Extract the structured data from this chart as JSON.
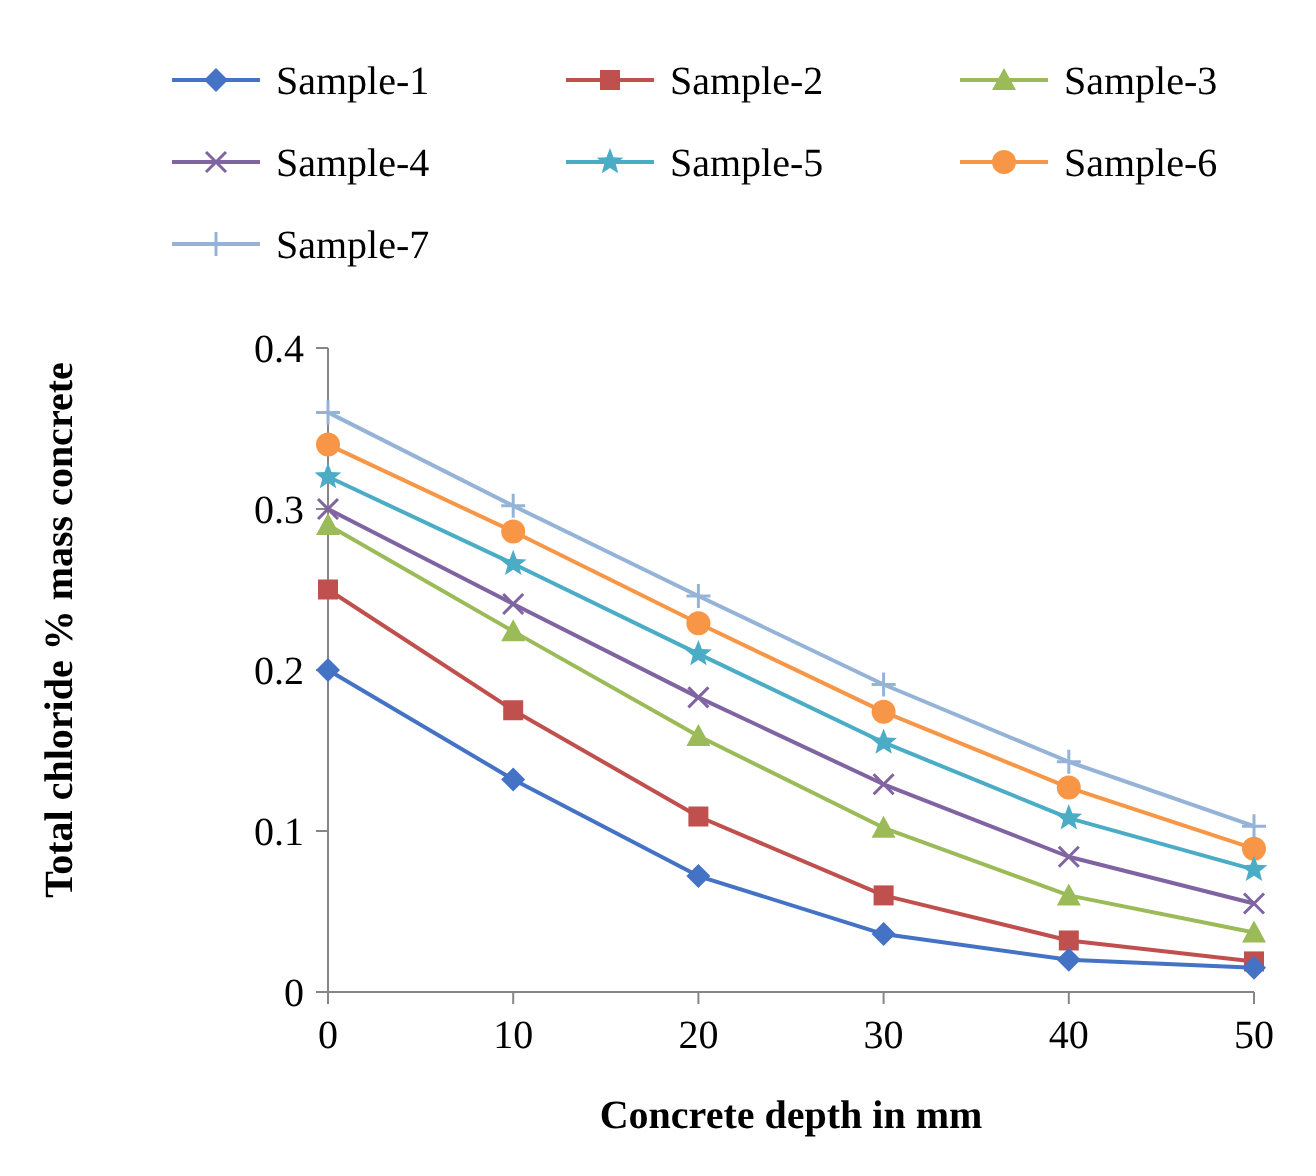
{
  "chart_data": {
    "type": "line",
    "xlabel": "Concrete depth in mm",
    "ylabel": "Total chloride % mass concrete",
    "x": [
      0,
      10,
      20,
      30,
      40,
      50
    ],
    "xlim": [
      0,
      50
    ],
    "xticks": [
      0,
      10,
      20,
      30,
      40,
      50
    ],
    "ylim": [
      0,
      0.4
    ],
    "yticks": [
      {
        "value": 0,
        "label": "0"
      },
      0.1,
      0.2,
      0.3,
      0.4
    ],
    "grid": false,
    "legend": "top",
    "series": [
      {
        "name": "Sample-1",
        "color": "#4472c4",
        "marker": "diamond",
        "values": [
          0.2,
          0.132,
          0.072,
          0.036,
          0.02,
          0.015
        ]
      },
      {
        "name": "Sample-2",
        "color": "#c0504d",
        "marker": "square",
        "values": [
          0.25,
          0.175,
          0.109,
          0.06,
          0.032,
          0.019
        ]
      },
      {
        "name": "Sample-3",
        "color": "#9bbb59",
        "marker": "triangle",
        "values": [
          0.29,
          0.224,
          0.159,
          0.102,
          0.06,
          0.037
        ]
      },
      {
        "name": "Sample-4",
        "color": "#8064a2",
        "marker": "cross",
        "values": [
          0.3,
          0.241,
          0.183,
          0.129,
          0.084,
          0.055
        ]
      },
      {
        "name": "Sample-5",
        "color": "#4bacc6",
        "marker": "star",
        "values": [
          0.32,
          0.266,
          0.21,
          0.155,
          0.108,
          0.076
        ]
      },
      {
        "name": "Sample-6",
        "color": "#f79646",
        "marker": "circle",
        "values": [
          0.34,
          0.286,
          0.229,
          0.174,
          0.127,
          0.089
        ]
      },
      {
        "name": "Sample-7",
        "color": "#95b3d7",
        "marker": "plus",
        "values": [
          0.36,
          0.302,
          0.246,
          0.191,
          0.143,
          0.103
        ]
      }
    ]
  }
}
